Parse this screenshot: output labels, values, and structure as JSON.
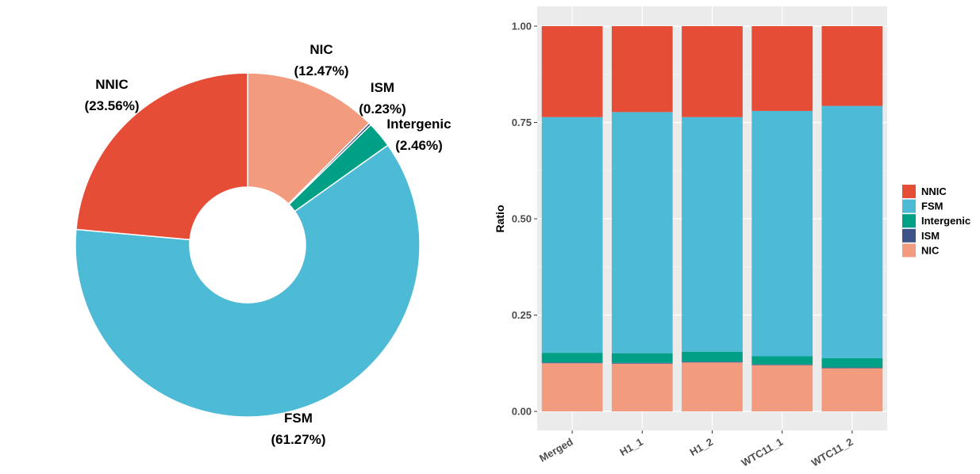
{
  "colors": {
    "NNIC": "#e64d36",
    "FSM": "#4dbad6",
    "Intergenic": "#00a086",
    "ISM": "#3c5488",
    "NIC": "#f39b7f"
  },
  "chart_data": [
    {
      "type": "pie",
      "donut": true,
      "slices": [
        {
          "name": "NIC",
          "value": 12.47,
          "label_line1": "NIC",
          "label_line2": "(12.47%)"
        },
        {
          "name": "ISM",
          "value": 0.23,
          "label_line1": "ISM",
          "label_line2": "(0.23%)"
        },
        {
          "name": "Intergenic",
          "value": 2.46,
          "label_line1": "Intergenic",
          "label_line2": "(2.46%)"
        },
        {
          "name": "FSM",
          "value": 61.27,
          "label_line1": "FSM",
          "label_line2": "(61.27%)"
        },
        {
          "name": "NNIC",
          "value": 23.56,
          "label_line1": "NNIC",
          "label_line2": "(23.56%)"
        }
      ]
    },
    {
      "type": "bar",
      "stacked": true,
      "categories": [
        "Merged",
        "H1_1",
        "H1_2",
        "WTC11_1",
        "WTC11_2"
      ],
      "ylabel": "Ratio",
      "ylim": [
        0,
        1
      ],
      "yticks": [
        "0.00",
        "0.25",
        "0.50",
        "0.75",
        "1.00"
      ],
      "stack_order_bottom_to_top": [
        "NIC",
        "ISM",
        "Intergenic",
        "FSM",
        "NNIC"
      ],
      "series": [
        {
          "name": "NIC",
          "values": [
            0.125,
            0.124,
            0.127,
            0.12,
            0.112
          ]
        },
        {
          "name": "ISM",
          "values": [
            0.002,
            0.002,
            0.002,
            0.002,
            0.002
          ]
        },
        {
          "name": "Intergenic",
          "values": [
            0.025,
            0.025,
            0.026,
            0.021,
            0.024
          ]
        },
        {
          "name": "FSM",
          "values": [
            0.612,
            0.626,
            0.609,
            0.637,
            0.655
          ]
        },
        {
          "name": "NNIC",
          "values": [
            0.236,
            0.223,
            0.236,
            0.22,
            0.207
          ]
        }
      ],
      "legend": {
        "position": "right",
        "entries": [
          "NNIC",
          "FSM",
          "Intergenic",
          "ISM",
          "NIC"
        ]
      },
      "grid": true
    }
  ]
}
